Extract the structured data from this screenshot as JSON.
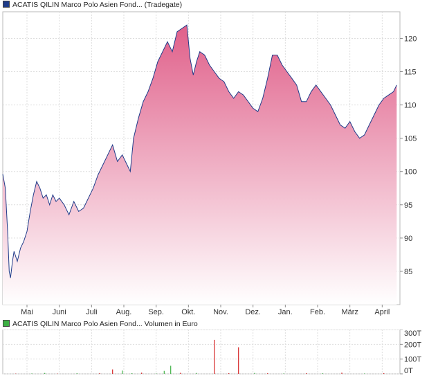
{
  "price_legend": {
    "label": "ACATIS QILIN Marco Polo Asien Fond... (Tradegate)",
    "color": "#1f3c8a"
  },
  "volume_legend": {
    "label": "ACATIS QILIN Marco Polo Asien Fond... Volumen in Euro",
    "color": "#3cb043"
  },
  "chart_data": [
    {
      "type": "area",
      "title": "",
      "xlabel": "",
      "ylabel": "",
      "ylim": [
        80,
        124
      ],
      "y_ticks": [
        85,
        90,
        95,
        100,
        105,
        110,
        115,
        120
      ],
      "x_ticks": [
        "Mai",
        "Juni",
        "Juli",
        "Aug.",
        "Sep.",
        "Okt.",
        "Nov.",
        "Dez.",
        "Jan.",
        "Feb.",
        "März",
        "April"
      ],
      "x_tick_positions": [
        0.75,
        1.75,
        2.75,
        3.75,
        4.75,
        5.75,
        6.75,
        7.75,
        8.75,
        9.75,
        10.75,
        11.75
      ],
      "xlim": [
        0,
        12.3
      ],
      "grid": true,
      "line_color": "#1f3c8a",
      "fill_top_color": "#e0608a",
      "fill_bottom_color": "#ffffff",
      "series": [
        {
          "x": [
            0.0,
            0.08,
            0.15,
            0.2,
            0.24,
            0.3,
            0.35,
            0.45,
            0.55,
            0.65,
            0.75,
            0.85,
            0.95,
            1.05,
            1.15,
            1.25,
            1.35,
            1.45,
            1.55,
            1.65,
            1.75,
            1.9,
            2.05,
            2.2,
            2.35,
            2.5,
            2.65,
            2.8,
            2.95,
            3.1,
            3.25,
            3.4,
            3.55,
            3.7,
            3.85,
            3.95,
            4.05,
            4.2,
            4.35,
            4.5,
            4.65,
            4.8,
            4.95,
            5.1,
            5.25,
            5.4,
            5.55,
            5.7,
            5.8,
            5.9,
            6.0,
            6.1,
            6.25,
            6.4,
            6.55,
            6.7,
            6.85,
            7.0,
            7.15,
            7.3,
            7.45,
            7.6,
            7.75,
            7.9,
            8.05,
            8.2,
            8.35,
            8.5,
            8.65,
            8.8,
            8.95,
            9.1,
            9.25,
            9.4,
            9.55,
            9.7,
            9.85,
            10.0,
            10.15,
            10.3,
            10.45,
            10.6,
            10.75,
            10.9,
            11.05,
            11.2,
            11.35,
            11.5,
            11.65,
            11.8,
            11.95,
            12.1,
            12.2
          ],
          "values": [
            99.6,
            97.5,
            91.0,
            85.0,
            84.0,
            86.5,
            88.0,
            86.5,
            88.5,
            89.5,
            91.0,
            94.0,
            96.5,
            98.5,
            97.5,
            96.0,
            96.5,
            95.0,
            96.5,
            95.5,
            96.0,
            95.0,
            93.5,
            95.5,
            94.0,
            94.5,
            96.0,
            97.5,
            99.5,
            101.0,
            102.5,
            104.0,
            101.5,
            102.5,
            101.0,
            100.0,
            105.0,
            108.0,
            110.5,
            112.0,
            114.0,
            116.5,
            118.0,
            119.5,
            118.0,
            121.0,
            121.5,
            122.0,
            117.0,
            114.5,
            116.5,
            118.0,
            117.5,
            116.0,
            115.0,
            114.0,
            113.5,
            112.0,
            111.0,
            112.0,
            111.5,
            110.5,
            109.5,
            109.0,
            111.0,
            114.0,
            117.5,
            117.5,
            116.0,
            115.0,
            114.0,
            113.0,
            110.5,
            110.5,
            112.0,
            113.0,
            112.0,
            111.0,
            110.0,
            108.5,
            107.0,
            106.5,
            107.5,
            106.0,
            105.0,
            105.5,
            107.0,
            108.5,
            110.0,
            111.0,
            111.5,
            112.0,
            113.0
          ]
        }
      ]
    },
    {
      "type": "bar",
      "title": "Volumen in Euro",
      "xlabel": "",
      "ylabel": "",
      "ylim": [
        0,
        300
      ],
      "y_ticks": [
        "0T",
        "100T",
        "200T",
        "300T"
      ],
      "y_tick_values": [
        0,
        100,
        200,
        300
      ],
      "xlim": [
        0,
        12.3
      ],
      "grid": true,
      "up_color": "#3cb043",
      "down_color": "#d62728",
      "bars": [
        {
          "x": 0.4,
          "value": 2,
          "dir": "down"
        },
        {
          "x": 0.9,
          "value": 3,
          "dir": "up"
        },
        {
          "x": 1.3,
          "value": 6,
          "dir": "up"
        },
        {
          "x": 1.7,
          "value": 2,
          "dir": "down"
        },
        {
          "x": 2.3,
          "value": 4,
          "dir": "up"
        },
        {
          "x": 3.0,
          "value": 5,
          "dir": "down"
        },
        {
          "x": 3.4,
          "value": 30,
          "dir": "down"
        },
        {
          "x": 3.7,
          "value": 22,
          "dir": "up"
        },
        {
          "x": 4.0,
          "value": 5,
          "dir": "up"
        },
        {
          "x": 4.3,
          "value": 8,
          "dir": "down"
        },
        {
          "x": 4.75,
          "value": 3,
          "dir": "up"
        },
        {
          "x": 5.0,
          "value": 20,
          "dir": "up"
        },
        {
          "x": 5.2,
          "value": 55,
          "dir": "up"
        },
        {
          "x": 5.5,
          "value": 7,
          "dir": "down"
        },
        {
          "x": 6.0,
          "value": 6,
          "dir": "up"
        },
        {
          "x": 6.55,
          "value": 230,
          "dir": "down"
        },
        {
          "x": 7.0,
          "value": 5,
          "dir": "down"
        },
        {
          "x": 7.3,
          "value": 180,
          "dir": "down"
        },
        {
          "x": 7.8,
          "value": 6,
          "dir": "up"
        },
        {
          "x": 8.2,
          "value": 4,
          "dir": "down"
        },
        {
          "x": 8.7,
          "value": 3,
          "dir": "up"
        },
        {
          "x": 9.4,
          "value": 5,
          "dir": "down"
        },
        {
          "x": 9.9,
          "value": 4,
          "dir": "up"
        },
        {
          "x": 10.5,
          "value": 8,
          "dir": "down"
        },
        {
          "x": 11.2,
          "value": 3,
          "dir": "up"
        },
        {
          "x": 11.8,
          "value": 5,
          "dir": "down"
        }
      ]
    }
  ]
}
